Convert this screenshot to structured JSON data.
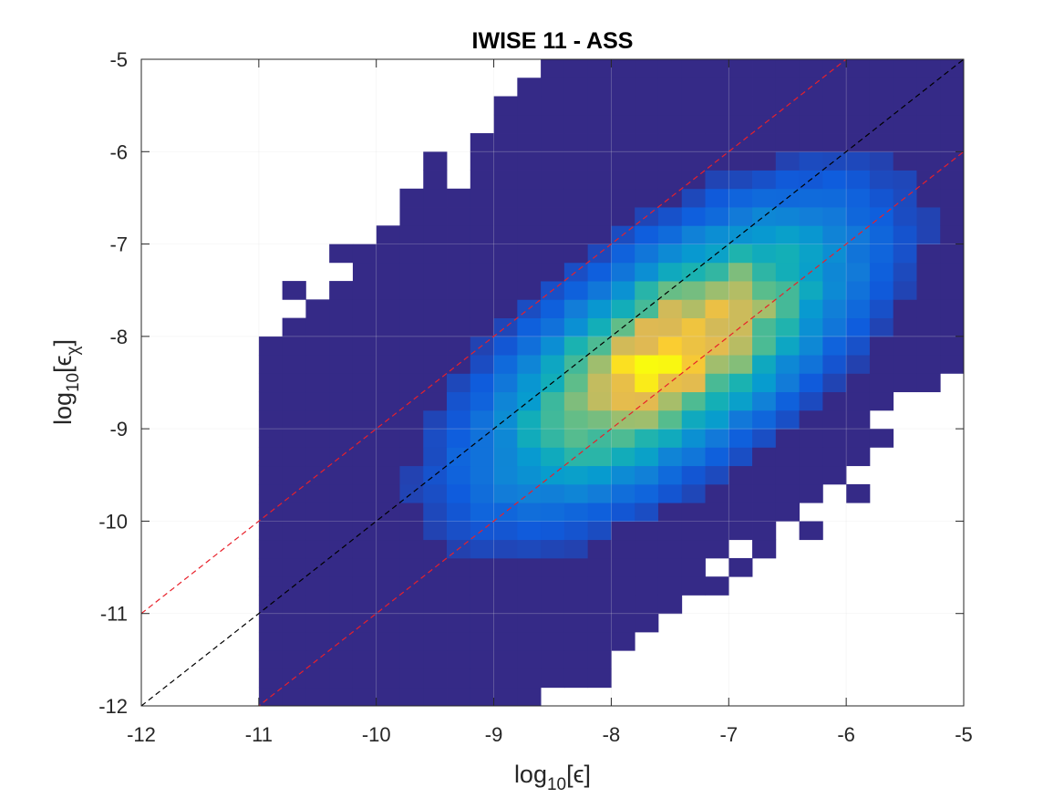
{
  "chart_data": {
    "type": "heatmap",
    "title": "IWISE 11 - ASS",
    "xlabel": {
      "base": "log",
      "subscript": "10",
      "arg": "[ϵ]"
    },
    "ylabel": {
      "base": "log",
      "subscript": "10",
      "arg_open": "[ϵ",
      "arg_sub": "χ",
      "arg_close": "]"
    },
    "xlim": [
      -12,
      -5
    ],
    "ylim": [
      -12,
      -5
    ],
    "xticks": [
      "-12",
      "-11",
      "-10",
      "-9",
      "-8",
      "-7",
      "-6",
      "-5"
    ],
    "yticks": [
      "-12",
      "-11",
      "-10",
      "-9",
      "-8",
      "-7",
      "-6",
      "-5"
    ],
    "grid": true,
    "colormap": "parula",
    "bin_width": 0.2,
    "density_peak": {
      "x": -7.5,
      "y": -8.2
    },
    "density_spread_along_diagonal": 1.2,
    "density_spread_across_diagonal": 0.55,
    "reference_lines": [
      {
        "type": "y=x",
        "offset": 0,
        "color": "#000000",
        "style": "dashed"
      },
      {
        "type": "y=x",
        "offset": 1,
        "color": "#e8202a",
        "style": "dashed"
      },
      {
        "type": "y=x",
        "offset": -1,
        "color": "#e8202a",
        "style": "dashed"
      }
    ]
  },
  "colors": {
    "background_bin": "#352a87",
    "empty": "#ffffff",
    "axes": "#262626",
    "grid": "#e0e0e0"
  }
}
